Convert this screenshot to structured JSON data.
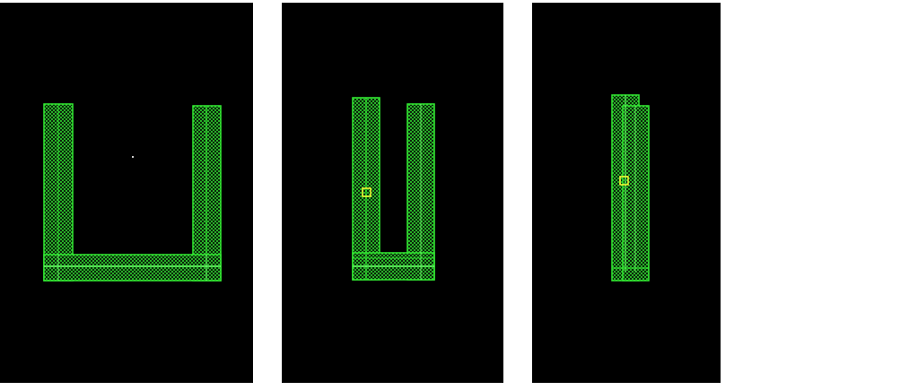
{
  "colors": {
    "background": "#000000",
    "page": "#ffffff",
    "shape_outline": "#33ee33",
    "shape_fill_pattern": "#2fc92f",
    "center_line": "#66ff66",
    "marker": "#ffff33",
    "dot": "#cccccc"
  },
  "panels": [
    {
      "shape": "wide-u",
      "marker": "none",
      "dot": true
    },
    {
      "shape": "narrow-u",
      "marker": "square",
      "dot": false
    },
    {
      "shape": "folded-bars",
      "marker": "square",
      "dot": false
    }
  ]
}
